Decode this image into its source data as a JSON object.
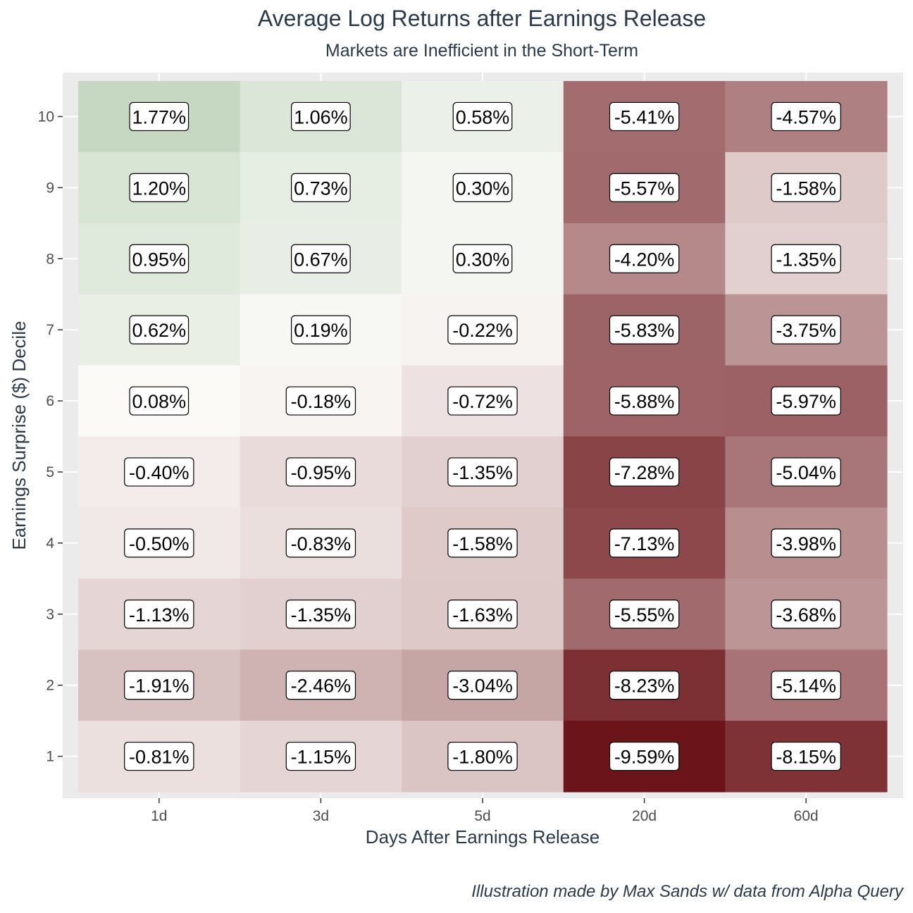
{
  "chart_data": {
    "type": "heatmap",
    "title": "Average Log Returns after Earnings Release",
    "subtitle": "Markets are Inefficient in the Short-Term",
    "xlabel": "Days After Earnings Release",
    "ylabel": "Earnings Surprise ($) Decile",
    "caption": "Illustration made by Max Sands w/ data from Alpha Query",
    "x_categories": [
      "1d",
      "3d",
      "5d",
      "20d",
      "60d"
    ],
    "y_categories": [
      "10",
      "9",
      "8",
      "7",
      "6",
      "5",
      "4",
      "3",
      "2",
      "1"
    ],
    "values": [
      [
        1.77,
        1.06,
        0.58,
        -5.41,
        -4.57
      ],
      [
        1.2,
        0.73,
        0.3,
        -5.57,
        -1.58
      ],
      [
        0.95,
        0.67,
        0.3,
        -4.2,
        -1.35
      ],
      [
        0.62,
        0.19,
        -0.22,
        -5.83,
        -3.75
      ],
      [
        0.08,
        -0.18,
        -0.72,
        -5.88,
        -5.97
      ],
      [
        -0.4,
        -0.95,
        -1.35,
        -7.28,
        -5.04
      ],
      [
        -0.5,
        -0.83,
        -1.58,
        -7.13,
        -3.98
      ],
      [
        -1.13,
        -1.35,
        -1.63,
        -5.55,
        -3.68
      ],
      [
        -1.91,
        -2.46,
        -3.04,
        -8.23,
        -5.14
      ],
      [
        -0.81,
        -1.15,
        -1.8,
        -9.59,
        -8.15
      ]
    ],
    "labels": [
      [
        "1.77%",
        "1.06%",
        "0.58%",
        "-5.41%",
        "-4.57%"
      ],
      [
        "1.20%",
        "0.73%",
        "0.30%",
        "-5.57%",
        "-1.58%"
      ],
      [
        "0.95%",
        "0.67%",
        "0.30%",
        "-4.20%",
        "-1.35%"
      ],
      [
        "0.62%",
        "0.19%",
        "-0.22%",
        "-5.83%",
        "-3.75%"
      ],
      [
        "0.08%",
        "-0.18%",
        "-0.72%",
        "-5.88%",
        "-5.97%"
      ],
      [
        "-0.40%",
        "-0.95%",
        "-1.35%",
        "-7.28%",
        "-5.04%"
      ],
      [
        "-0.50%",
        "-0.83%",
        "-1.58%",
        "-7.13%",
        "-3.98%"
      ],
      [
        "-1.13%",
        "-1.35%",
        "-1.63%",
        "-5.55%",
        "-3.68%"
      ],
      [
        "-1.91%",
        "-2.46%",
        "-3.04%",
        "-8.23%",
        "-5.14%"
      ],
      [
        "-0.81%",
        "-1.15%",
        "-1.80%",
        "-9.59%",
        "-8.15%"
      ]
    ],
    "colors": {
      "low": "#6b1419",
      "mid": "#fdfcfa",
      "high": "#c6d8c2",
      "panel": "#ebebeb",
      "grid": "#ffffff"
    },
    "legend": "none",
    "grid": true
  }
}
